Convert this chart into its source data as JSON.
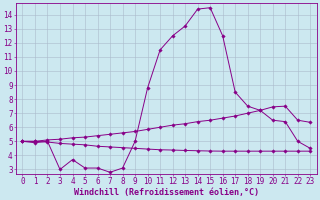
{
  "xlabel": "Windchill (Refroidissement éolien,°C)",
  "x": [
    0,
    1,
    2,
    3,
    4,
    5,
    6,
    7,
    8,
    9,
    10,
    11,
    12,
    13,
    14,
    15,
    16,
    17,
    18,
    19,
    20,
    21,
    22,
    23
  ],
  "line1": [
    5.0,
    4.9,
    5.0,
    3.0,
    3.7,
    3.1,
    3.1,
    2.8,
    3.1,
    5.0,
    8.8,
    11.5,
    12.5,
    13.2,
    14.4,
    14.5,
    12.5,
    8.5,
    7.5,
    7.2,
    6.5,
    6.4,
    5.0,
    4.5
  ],
  "line2": [
    5.0,
    5.0,
    5.1,
    5.15,
    5.25,
    5.3,
    5.4,
    5.5,
    5.6,
    5.7,
    5.85,
    6.0,
    6.15,
    6.25,
    6.4,
    6.5,
    6.65,
    6.8,
    7.0,
    7.2,
    7.45,
    7.5,
    6.5,
    6.35
  ],
  "line3": [
    5.0,
    5.0,
    4.95,
    4.85,
    4.8,
    4.75,
    4.65,
    4.6,
    4.55,
    4.5,
    4.45,
    4.4,
    4.38,
    4.35,
    4.33,
    4.31,
    4.3,
    4.3,
    4.3,
    4.3,
    4.3,
    4.3,
    4.3,
    4.3
  ],
  "color": "#880088",
  "bg_color": "#cce8f0",
  "grid_color": "#aabbcc",
  "ylim_min": 2.7,
  "ylim_max": 14.8,
  "yticks": [
    3,
    4,
    5,
    6,
    7,
    8,
    9,
    10,
    11,
    12,
    13,
    14
  ],
  "xlim_min": -0.5,
  "xlim_max": 23.5,
  "tick_fontsize": 5.5,
  "xlabel_fontsize": 6.0
}
